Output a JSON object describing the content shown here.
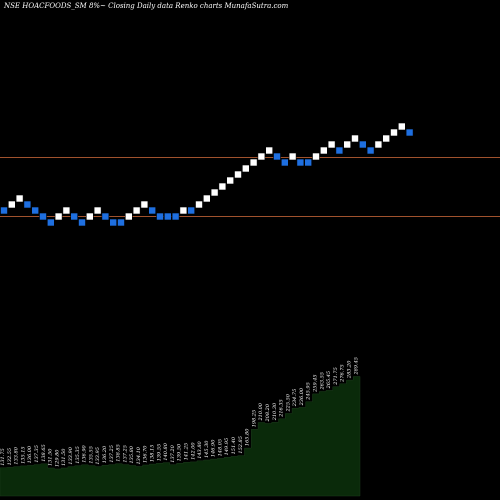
{
  "header": {
    "title": "NSE HOACFOODS_SM 8%~ Closing Daily data Renko charts MunafaSutra.com"
  },
  "colors": {
    "background": "#000000",
    "up_brick": "#ffffff",
    "down_brick": "#1e6fe0",
    "ref_line": "#a0522d",
    "volume_fill": "#0a2a0a"
  },
  "chart_data": {
    "type": "renko",
    "bricks": [
      {
        "dir": "down",
        "level": 0
      },
      {
        "dir": "up",
        "level": 1
      },
      {
        "dir": "up",
        "level": 2
      },
      {
        "dir": "down",
        "level": 1
      },
      {
        "dir": "down",
        "level": 0
      },
      {
        "dir": "down",
        "level": -1
      },
      {
        "dir": "down",
        "level": -2
      },
      {
        "dir": "up",
        "level": -1
      },
      {
        "dir": "up",
        "level": 0
      },
      {
        "dir": "down",
        "level": -1
      },
      {
        "dir": "down",
        "level": -2
      },
      {
        "dir": "up",
        "level": -1
      },
      {
        "dir": "up",
        "level": 0
      },
      {
        "dir": "down",
        "level": -1
      },
      {
        "dir": "down",
        "level": -2
      },
      {
        "dir": "down",
        "level": -2
      },
      {
        "dir": "up",
        "level": -1
      },
      {
        "dir": "up",
        "level": 0
      },
      {
        "dir": "up",
        "level": 1
      },
      {
        "dir": "down",
        "level": 0
      },
      {
        "dir": "down",
        "level": -1
      },
      {
        "dir": "down",
        "level": -1
      },
      {
        "dir": "down",
        "level": -1
      },
      {
        "dir": "up",
        "level": 0
      },
      {
        "dir": "down",
        "level": 0
      },
      {
        "dir": "up",
        "level": 1
      },
      {
        "dir": "up",
        "level": 2
      },
      {
        "dir": "up",
        "level": 3
      },
      {
        "dir": "up",
        "level": 4
      },
      {
        "dir": "up",
        "level": 5
      },
      {
        "dir": "up",
        "level": 6
      },
      {
        "dir": "up",
        "level": 7
      },
      {
        "dir": "up",
        "level": 8
      },
      {
        "dir": "up",
        "level": 9
      },
      {
        "dir": "up",
        "level": 10
      },
      {
        "dir": "down",
        "level": 9
      },
      {
        "dir": "down",
        "level": 8
      },
      {
        "dir": "up",
        "level": 9
      },
      {
        "dir": "down",
        "level": 8
      },
      {
        "dir": "down",
        "level": 8
      },
      {
        "dir": "up",
        "level": 9
      },
      {
        "dir": "up",
        "level": 10
      },
      {
        "dir": "up",
        "level": 11
      },
      {
        "dir": "down",
        "level": 10
      },
      {
        "dir": "up",
        "level": 11
      },
      {
        "dir": "up",
        "level": 12
      },
      {
        "dir": "down",
        "level": 11
      },
      {
        "dir": "down",
        "level": 10
      },
      {
        "dir": "up",
        "level": 11
      },
      {
        "dir": "up",
        "level": 12
      },
      {
        "dir": "up",
        "level": 13
      },
      {
        "dir": "up",
        "level": 14
      },
      {
        "dir": "down",
        "level": 13
      }
    ],
    "reference_lines": [
      "upper",
      "lower"
    ],
    "volume_labels": [
      "131.75",
      "132.55",
      "133.80",
      "135.15",
      "136.00",
      "137.35",
      "138.65",
      "131.50",
      "129.80",
      "131.50",
      "133.90",
      "135.35",
      "136.90",
      "135.55",
      "133.95",
      "136.20",
      "137.25",
      "138.85",
      "137.25",
      "135.80",
      "134.10",
      "136.70",
      "138.15",
      "139.55",
      "140.80",
      "137.20",
      "139.50",
      "141.25",
      "142.00",
      "143.80",
      "145.30",
      "146.90",
      "148.05",
      "149.95",
      "151.40",
      "152.85",
      "165.80",
      "198.25",
      "210.00",
      "208.20",
      "210.30",
      "216.35",
      "225.50",
      "234.75",
      "236.00",
      "245.95",
      "259.45",
      "263.55",
      "265.45",
      "271.75",
      "276.75",
      "283.20",
      "289.45"
    ]
  }
}
